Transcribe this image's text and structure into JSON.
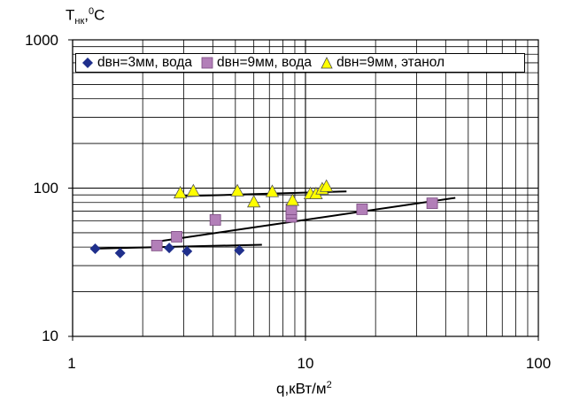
{
  "chart_data": {
    "type": "scatter",
    "x_scale": "log",
    "y_scale": "log",
    "xlim": [
      1,
      100
    ],
    "ylim": [
      10,
      1000
    ],
    "xlabel": "q,кВт/м",
    "xlabel_sup": "2",
    "ylabel": "T",
    "ylabel_sub": "нк",
    "ylabel_tail": ",",
    "ylabel_sup": "0",
    "ylabel_unit": "C",
    "x_ticks": [
      "1",
      "10",
      "100"
    ],
    "y_ticks": [
      "10",
      "100",
      "1000"
    ],
    "grid": true,
    "legend_position": "top",
    "series": [
      {
        "name": "dвн=3мм, вода",
        "marker": "diamond",
        "color": "#1f2f8c",
        "x": [
          1.25,
          1.6,
          2.6,
          3.1,
          5.2
        ],
        "y": [
          39,
          36.5,
          39.5,
          37.5,
          38
        ],
        "trend": {
          "x": [
            1.2,
            6.5
          ],
          "y": [
            39,
            41.5
          ]
        }
      },
      {
        "name": "dвн=9мм, вода",
        "marker": "square",
        "color": "#b27fb8",
        "x": [
          2.3,
          2.8,
          4.1,
          8.7,
          8.7,
          8.7,
          17.5,
          35
        ],
        "y": [
          41,
          47,
          61,
          64,
          68,
          72,
          72,
          79
        ],
        "trend": {
          "x": [
            2.4,
            44
          ],
          "y": [
            44,
            86
          ]
        }
      },
      {
        "name": "dвн=9мм, этанол",
        "marker": "triangle",
        "color": "#ffff00",
        "x": [
          2.9,
          3.3,
          5.1,
          6,
          7.2,
          8.8,
          10.5,
          11.1,
          11.8,
          12.3
        ],
        "y": [
          93,
          96,
          96,
          81,
          95,
          83,
          92,
          92,
          99,
          103
        ],
        "trend": {
          "x": [
            2.8,
            15
          ],
          "y": [
            88,
            95
          ]
        }
      }
    ]
  }
}
